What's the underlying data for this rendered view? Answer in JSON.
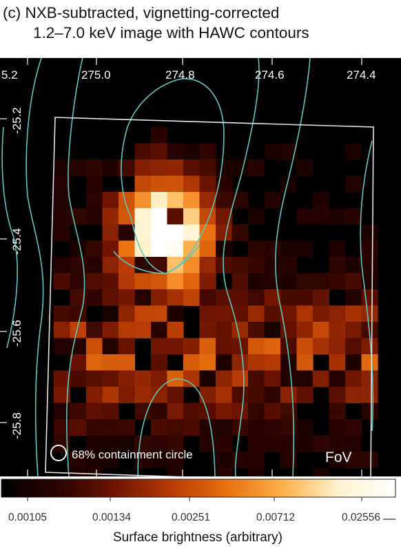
{
  "title": {
    "line1": "(c) NXB-subtracted, vignetting-corrected",
    "line2": "1.2–7.0 keV image with HAWC contours"
  },
  "ra_ticks": [
    "5.2",
    "275.0",
    "274.8",
    "274.6",
    "274.4"
  ],
  "dec_ticks": [
    "-25.2",
    "-25.4",
    "-25.6",
    "-25.8"
  ],
  "labels": {
    "containment": "68% containment circle",
    "fov": "FoV"
  },
  "colorbar": {
    "ticks": [
      "0.00105",
      "0.00134",
      "0.00251",
      "0.00712",
      "0.02556"
    ],
    "label": "Surface brightness (arbitrary)",
    "colormap": [
      "#000000",
      "#2a0300",
      "#6e1400",
      "#b53a05",
      "#e8700f",
      "#ffb04a",
      "#fff4d0",
      "#ffffff"
    ]
  },
  "colors": {
    "contour": "#5fc7c0",
    "fov_box": "#e6e6e6",
    "background": "#000000"
  }
}
